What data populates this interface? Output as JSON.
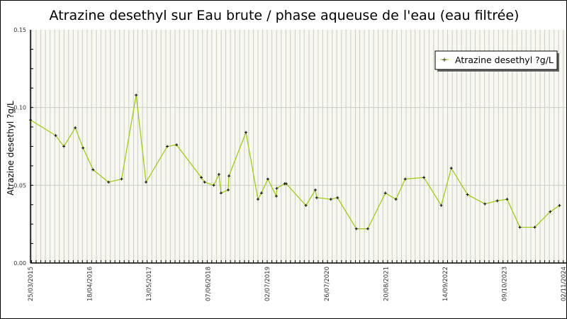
{
  "chart_data": {
    "type": "line",
    "title": "Atrazine desethyl sur Eau brute / phase aqueuse de l'eau (eau filtrée)",
    "xlabel": "",
    "ylabel": "Atrazine desethyl ?g/L",
    "xlim": [
      "2015-03-25",
      "2024-11-02"
    ],
    "ylim": [
      0,
      0.15
    ],
    "x_tick_labels": [
      "25/03/2015",
      "18/04/2016",
      "13/05/2017",
      "07/06/2018",
      "02/07/2019",
      "26/07/2020",
      "20/08/2021",
      "14/09/2022",
      "09/10/2023",
      "02/11/2024"
    ],
    "x_tick_dates": [
      "2015-03-25",
      "2016-04-18",
      "2017-05-13",
      "2018-06-07",
      "2019-07-02",
      "2020-07-26",
      "2021-08-20",
      "2022-09-14",
      "2023-10-09",
      "2024-11-02"
    ],
    "y_tick_labels": [
      "0.00",
      "0.05",
      "0.10",
      "0.15"
    ],
    "y_ticks": [
      0,
      0.05,
      0.1,
      0.15
    ],
    "grid": true,
    "legend_position": "top-right",
    "colors": {
      "line": "#99cc00",
      "marker": "#000000",
      "background": "#f8f8f0",
      "grid": "#cccccc"
    },
    "series": [
      {
        "name": "Atrazine desethyl ?g/L",
        "x": [
          "2015-03-25",
          "2015-09-07",
          "2015-10-31",
          "2016-01-14",
          "2016-03-05",
          "2016-05-10",
          "2016-08-20",
          "2016-11-14",
          "2017-02-18",
          "2017-04-24",
          "2017-09-11",
          "2017-11-11",
          "2018-04-23",
          "2018-05-15",
          "2018-07-14",
          "2018-08-17",
          "2018-08-31",
          "2018-10-17",
          "2018-10-22",
          "2019-02-11",
          "2019-05-01",
          "2019-05-24",
          "2019-07-05",
          "2019-08-30",
          "2019-09-02",
          "2019-10-24",
          "2019-11-03",
          "2020-03-12",
          "2020-05-13",
          "2020-05-22",
          "2020-08-23",
          "2020-10-06",
          "2021-02-07",
          "2021-04-23",
          "2021-08-17",
          "2021-10-26",
          "2021-12-26",
          "2022-04-28",
          "2022-08-20",
          "2022-10-25",
          "2023-02-09",
          "2023-06-04",
          "2023-08-24",
          "2023-10-28",
          "2024-01-20",
          "2024-04-27",
          "2024-08-07",
          "2024-10-07"
        ],
        "y": [
          0.092,
          0.082,
          0.075,
          0.087,
          0.074,
          0.06,
          0.052,
          0.054,
          0.108,
          0.052,
          0.075,
          0.076,
          0.055,
          0.052,
          0.05,
          0.057,
          0.045,
          0.047,
          0.056,
          0.084,
          0.041,
          0.045,
          0.054,
          0.043,
          0.048,
          0.051,
          0.051,
          0.037,
          0.047,
          0.042,
          0.041,
          0.042,
          0.022,
          0.022,
          0.045,
          0.041,
          0.054,
          0.055,
          0.037,
          0.061,
          0.044,
          0.038,
          0.04,
          0.041,
          0.023,
          0.023,
          0.033,
          0.037
        ]
      }
    ]
  }
}
